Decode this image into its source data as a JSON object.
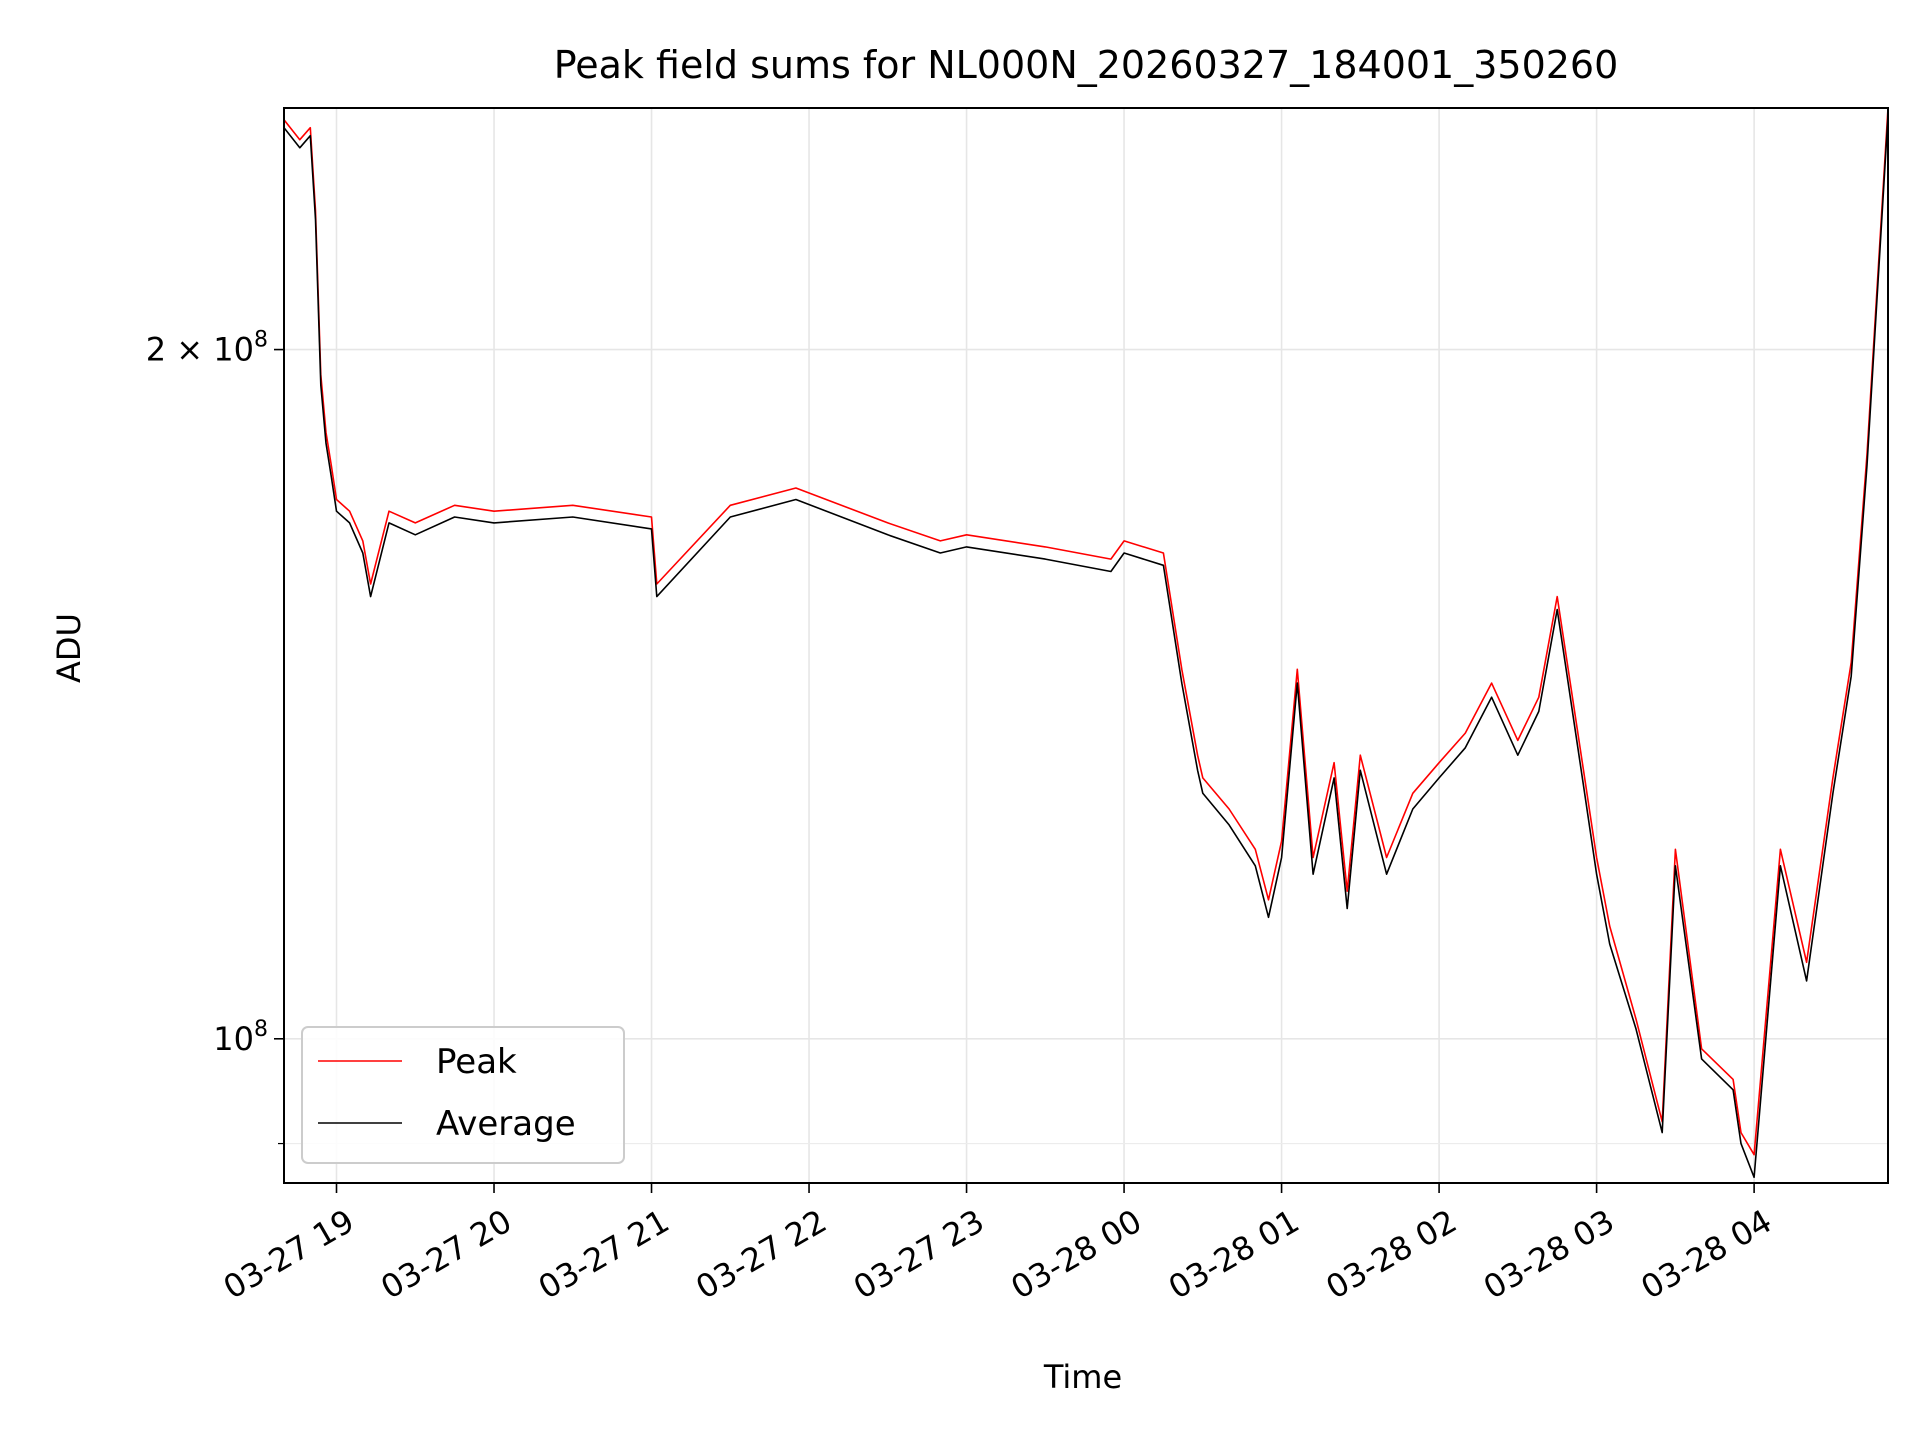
{
  "chart_data": {
    "type": "line",
    "title": "Peak field sums for NL000N_20260327_184001_350260",
    "xlabel": "Time",
    "ylabel": "ADU",
    "y_scale": "log",
    "grid": true,
    "legend_position": "lower-left",
    "xlim": [
      "2026-03-27 18:40",
      "2026-03-28 04:51"
    ],
    "ylim": [
      86500000,
      255000000
    ],
    "x_tick_labels": [
      "03-27 19",
      "03-27 20",
      "03-27 21",
      "03-27 22",
      "03-27 23",
      "03-28 00",
      "03-28 01",
      "03-28 02",
      "03-28 03",
      "03-28 04"
    ],
    "x_ticks": [
      "2026-03-27 19:00",
      "2026-03-27 20:00",
      "2026-03-27 21:00",
      "2026-03-27 22:00",
      "2026-03-27 23:00",
      "2026-03-28 00:00",
      "2026-03-28 01:00",
      "2026-03-28 02:00",
      "2026-03-28 03:00",
      "2026-03-28 04:00"
    ],
    "y_major_ticks": [
      {
        "value": 100000000,
        "label": "10",
        "sup": "8"
      },
      {
        "value": 200000000,
        "label": "2 × 10",
        "sup": "8"
      }
    ],
    "y_minor_ticks": [
      90000000
    ],
    "series": [
      {
        "name": "Peak",
        "color": "#ff0000",
        "x": [
          "2026-03-27 18:40",
          "2026-03-27 18:46",
          "2026-03-27 18:50",
          "2026-03-27 18:52",
          "2026-03-27 18:54",
          "2026-03-27 18:56",
          "2026-03-27 18:58",
          "2026-03-27 19:00",
          "2026-03-27 19:05",
          "2026-03-27 19:10",
          "2026-03-27 19:13",
          "2026-03-27 19:20",
          "2026-03-27 19:30",
          "2026-03-27 19:45",
          "2026-03-27 20:00",
          "2026-03-27 20:30",
          "2026-03-27 21:00",
          "2026-03-27 21:02",
          "2026-03-27 21:30",
          "2026-03-27 21:55",
          "2026-03-27 22:30",
          "2026-03-27 22:50",
          "2026-03-27 23:00",
          "2026-03-27 23:30",
          "2026-03-27 23:55",
          "2026-03-28 00:00",
          "2026-03-28 00:15",
          "2026-03-28 00:22",
          "2026-03-28 00:28",
          "2026-03-28 00:30",
          "2026-03-28 00:40",
          "2026-03-28 00:50",
          "2026-03-28 00:55",
          "2026-03-28 01:00",
          "2026-03-28 01:06",
          "2026-03-28 01:12",
          "2026-03-28 01:20",
          "2026-03-28 01:25",
          "2026-03-28 01:30",
          "2026-03-28 01:40",
          "2026-03-28 01:50",
          "2026-03-28 02:00",
          "2026-03-28 02:10",
          "2026-03-28 02:20",
          "2026-03-28 02:30",
          "2026-03-28 02:38",
          "2026-03-28 02:45",
          "2026-03-28 02:55",
          "2026-03-28 03:00",
          "2026-03-28 03:05",
          "2026-03-28 03:15",
          "2026-03-28 03:25",
          "2026-03-28 03:30",
          "2026-03-28 03:40",
          "2026-03-28 03:52",
          "2026-03-28 03:55",
          "2026-03-28 04:00",
          "2026-03-28 04:10",
          "2026-03-28 04:20",
          "2026-03-28 04:30",
          "2026-03-28 04:37",
          "2026-03-28 04:43",
          "2026-03-28 04:51"
        ],
        "y": [
          252000000,
          247000000,
          250000000,
          230000000,
          195000000,
          184000000,
          178000000,
          172000000,
          170000000,
          165000000,
          158000000,
          170000000,
          168000000,
          171000000,
          170000000,
          171000000,
          169000000,
          158000000,
          171000000,
          174000000,
          168000000,
          165000000,
          166000000,
          164000000,
          162000000,
          165000000,
          163000000,
          145000000,
          133000000,
          130000000,
          126000000,
          121000000,
          115000000,
          122000000,
          145000000,
          120000000,
          132000000,
          116000000,
          133000000,
          120000000,
          128000000,
          132000000,
          136000000,
          143000000,
          135000000,
          141000000,
          156000000,
          131000000,
          120000000,
          112000000,
          102000000,
          92000000,
          121000000,
          99000000,
          96000000,
          91000000,
          89000000,
          121000000,
          108000000,
          130000000,
          146000000,
          180000000,
          255000000
        ]
      },
      {
        "name": "Average",
        "color": "#000000",
        "x": [
          "2026-03-27 18:40",
          "2026-03-27 18:46",
          "2026-03-27 18:50",
          "2026-03-27 18:52",
          "2026-03-27 18:54",
          "2026-03-27 18:56",
          "2026-03-27 18:58",
          "2026-03-27 19:00",
          "2026-03-27 19:05",
          "2026-03-27 19:10",
          "2026-03-27 19:13",
          "2026-03-27 19:20",
          "2026-03-27 19:30",
          "2026-03-27 19:45",
          "2026-03-27 20:00",
          "2026-03-27 20:30",
          "2026-03-27 21:00",
          "2026-03-27 21:02",
          "2026-03-27 21:30",
          "2026-03-27 21:55",
          "2026-03-27 22:30",
          "2026-03-27 22:50",
          "2026-03-27 23:00",
          "2026-03-27 23:30",
          "2026-03-27 23:55",
          "2026-03-28 00:00",
          "2026-03-28 00:15",
          "2026-03-28 00:22",
          "2026-03-28 00:28",
          "2026-03-28 00:30",
          "2026-03-28 00:40",
          "2026-03-28 00:50",
          "2026-03-28 00:55",
          "2026-03-28 01:00",
          "2026-03-28 01:06",
          "2026-03-28 01:12",
          "2026-03-28 01:20",
          "2026-03-28 01:25",
          "2026-03-28 01:30",
          "2026-03-28 01:40",
          "2026-03-28 01:50",
          "2026-03-28 02:00",
          "2026-03-28 02:10",
          "2026-03-28 02:20",
          "2026-03-28 02:30",
          "2026-03-28 02:38",
          "2026-03-28 02:45",
          "2026-03-28 02:55",
          "2026-03-28 03:00",
          "2026-03-28 03:05",
          "2026-03-28 03:15",
          "2026-03-28 03:25",
          "2026-03-28 03:30",
          "2026-03-28 03:40",
          "2026-03-28 03:52",
          "2026-03-28 03:55",
          "2026-03-28 04:00",
          "2026-03-28 04:10",
          "2026-03-28 04:20",
          "2026-03-28 04:30",
          "2026-03-28 04:37",
          "2026-03-28 04:43",
          "2026-03-28 04:51"
        ],
        "y": [
          250000000,
          245000000,
          248000000,
          228000000,
          193000000,
          182000000,
          176000000,
          170000000,
          168000000,
          163000000,
          156000000,
          168000000,
          166000000,
          169000000,
          168000000,
          169000000,
          167000000,
          156000000,
          169000000,
          172000000,
          166000000,
          163000000,
          164000000,
          162000000,
          160000000,
          163000000,
          161000000,
          143000000,
          131000000,
          128000000,
          124000000,
          119000000,
          113000000,
          120000000,
          143000000,
          118000000,
          130000000,
          114000000,
          131000000,
          118000000,
          126000000,
          130000000,
          134000000,
          141000000,
          133000000,
          139000000,
          154000000,
          129000000,
          118000000,
          110000000,
          101000000,
          91000000,
          119000000,
          98000000,
          95000000,
          90000000,
          87000000,
          119000000,
          106000000,
          128000000,
          144000000,
          178000000,
          253000000
        ]
      }
    ]
  }
}
